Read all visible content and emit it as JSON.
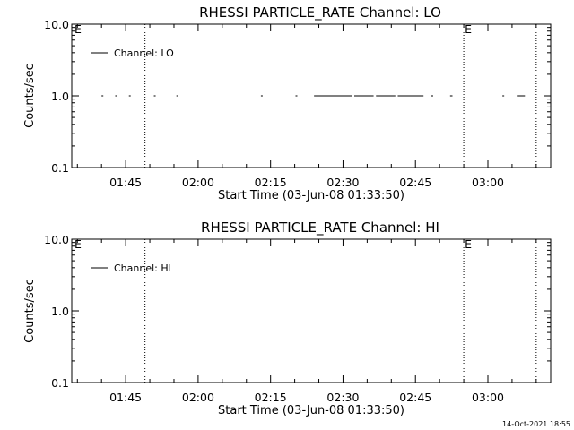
{
  "chart_data": [
    {
      "type": "line",
      "title": "RHESSI PARTICLE_RATE Channel: LO",
      "xlabel": "Start Time (03-Jun-08 01:33:50)",
      "ylabel": "Counts/sec",
      "y_scale": "log",
      "ylim": [
        0.1,
        10.0
      ],
      "y_ticks": [
        "0.1",
        "1.0",
        "10.0"
      ],
      "x_ticks": [
        "01:45",
        "02:00",
        "02:15",
        "02:30",
        "02:45",
        "03:00"
      ],
      "legend": {
        "label": "Channel: LO",
        "placement": "top-left"
      },
      "markers": [
        {
          "label": "E",
          "time": "01:33"
        },
        {
          "label": "",
          "time": "01:49"
        },
        {
          "label": "E",
          "time": "02:55"
        },
        {
          "label": "",
          "time": "03:10"
        }
      ],
      "series": [
        {
          "segments": [
            [
              "01:40:00",
              "01:40:20"
            ],
            [
              "01:42:50",
              "01:43:10"
            ],
            [
              "01:45:40",
              "01:46:00"
            ],
            [
              "01:50:50",
              "01:51:10"
            ],
            [
              "01:55:30",
              "01:55:50"
            ],
            [
              "02:13:00",
              "02:13:20"
            ],
            [
              "02:20:10",
              "02:20:30"
            ],
            [
              "02:24:00",
              "02:31:50"
            ],
            [
              "02:32:20",
              "02:36:20"
            ],
            [
              "02:36:50",
              "02:40:50"
            ],
            [
              "02:41:20",
              "02:46:40"
            ],
            [
              "02:48:10",
              "02:48:40"
            ],
            [
              "02:52:10",
              "02:52:40"
            ],
            [
              "03:03:00",
              "03:03:20"
            ],
            [
              "03:06:10",
              "03:07:40"
            ]
          ],
          "value": 1.0
        }
      ]
    },
    {
      "type": "line",
      "title": "RHESSI PARTICLE_RATE Channel: HI",
      "xlabel": "Start Time (03-Jun-08 01:33:50)",
      "ylabel": "Counts/sec",
      "y_scale": "log",
      "ylim": [
        0.1,
        10.0
      ],
      "y_ticks": [
        "0.1",
        "1.0",
        "10.0"
      ],
      "x_ticks": [
        "01:45",
        "02:00",
        "02:15",
        "02:30",
        "02:45",
        "03:00"
      ],
      "legend": {
        "label": "Channel: HI",
        "placement": "top-left"
      },
      "markers": [
        {
          "label": "E",
          "time": "01:33"
        },
        {
          "label": "",
          "time": "01:49"
        },
        {
          "label": "E",
          "time": "02:55"
        },
        {
          "label": "",
          "time": "03:10"
        }
      ],
      "series": []
    }
  ],
  "footer": {
    "timestamp": "14-Oct-2021 18:55"
  }
}
